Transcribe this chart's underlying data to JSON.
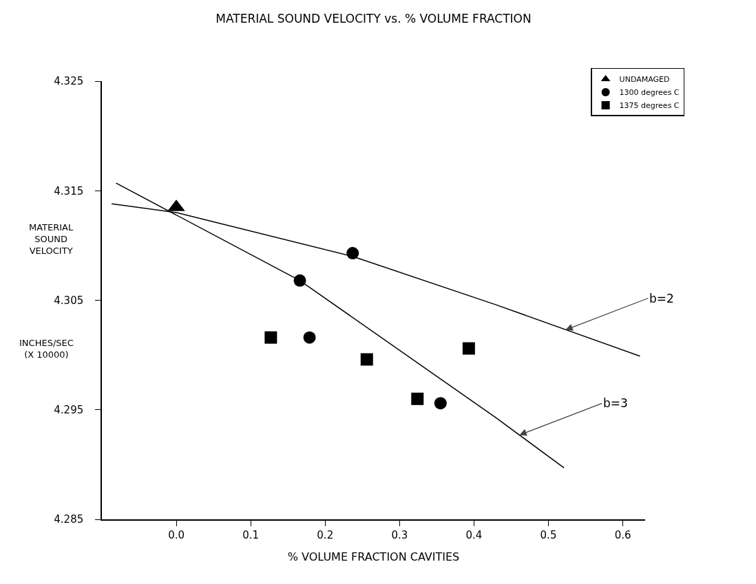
{
  "chart_data": {
    "type": "scatter",
    "title": "MATERIAL SOUND VELOCITY vs. % VOLUME FRACTION",
    "xlabel": "% VOLUME FRACTION CAVITIES",
    "ylabel": "MATERIAL SOUND VELOCITY",
    "annotations": [
      "INCHES/SEC (X 10000)",
      {
        "text": "b=2",
        "x": 0.523,
        "y": 4.3023
      },
      {
        "text": "b=3",
        "x": 0.461,
        "y": 4.2927
      }
    ],
    "series": [
      {
        "name": "UNDAMAGED",
        "marker": "triangle",
        "color": "#000000",
        "x": [
          0.0
        ],
        "values": [
          4.3135
        ]
      },
      {
        "name": "1300 degrees C",
        "marker": "circle",
        "color": "#000000",
        "x": [
          0.166,
          0.179,
          0.237,
          0.355
        ],
        "values": [
          4.3068,
          4.3016,
          4.3093,
          4.2956
        ]
      },
      {
        "name": "1375 degrees C",
        "marker": "square",
        "color": "#000000",
        "x": [
          0.127,
          0.256,
          0.324,
          0.393
        ],
        "values": [
          4.3016,
          4.2996,
          4.296,
          4.3006
        ]
      },
      {
        "type": "line",
        "marker": "none",
        "color": "#000000",
        "x": [
          -0.087,
          0.0,
          0.237,
          0.429,
          0.623
        ],
        "values": [
          4.3138,
          4.313,
          4.309,
          4.3046,
          4.2999
        ]
      },
      {
        "type": "line",
        "marker": "none",
        "color": "#000000",
        "x": [
          -0.081,
          0.166,
          0.429,
          0.521
        ],
        "values": [
          4.3157,
          4.3068,
          4.2943,
          4.2897
        ]
      }
    ],
    "xlim": [
      -0.1,
      0.63
    ],
    "xticks": [
      {
        "value": 0,
        "label": "0.0"
      },
      0.1,
      0.2,
      0.3,
      0.4,
      0.5,
      0.6
    ],
    "ylim": [
      4.285,
      4.325
    ],
    "yticks": [
      4.285,
      4.295,
      4.305,
      4.315,
      4.325
    ],
    "grid": false,
    "legend": "top right"
  }
}
